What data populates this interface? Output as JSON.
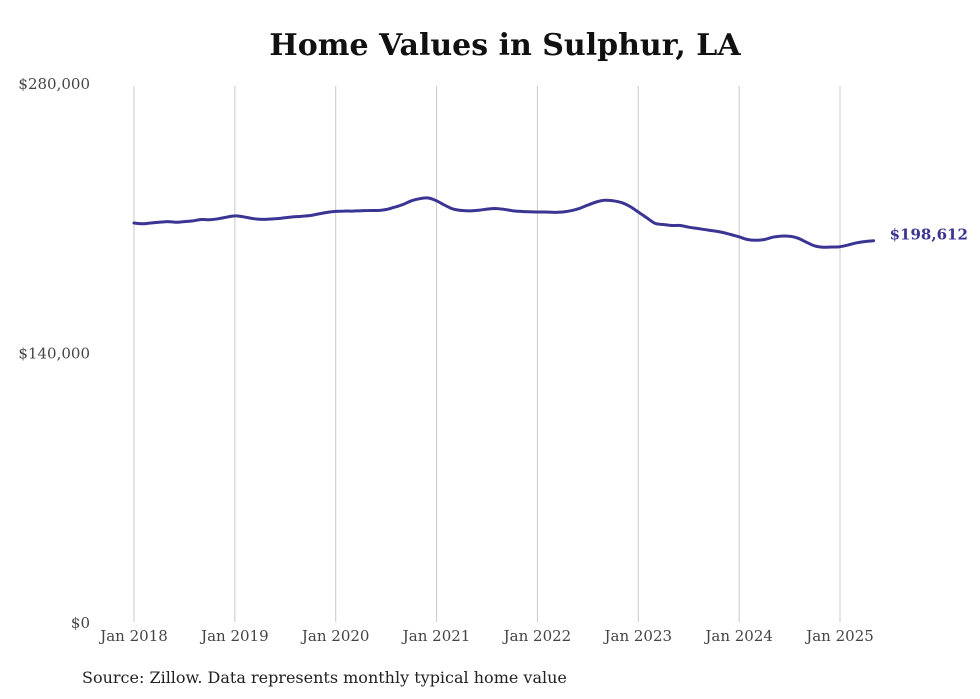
{
  "chart_data": {
    "type": "line",
    "title": "Home Values in Sulphur, LA",
    "xlabel": "",
    "ylabel": "",
    "ylim": [
      0,
      280000
    ],
    "xlim": [
      "2018-01",
      "2025-05"
    ],
    "y_ticks": [
      "$0",
      "$140,000",
      "$280,000"
    ],
    "y_tick_values": [
      0,
      140000,
      280000
    ],
    "x_ticks": [
      "Jan 2018",
      "Jan 2019",
      "Jan 2020",
      "Jan 2021",
      "Jan 2022",
      "Jan 2023",
      "Jan 2024",
      "Jan 2025"
    ],
    "x_tick_dates": [
      "2018-01",
      "2019-01",
      "2020-01",
      "2021-01",
      "2022-01",
      "2023-01",
      "2024-01",
      "2025-01"
    ],
    "grid": "vertical",
    "line_color": "#3a3593",
    "end_label": "$198,612",
    "series": [
      {
        "x": [
          "2018-01",
          "2018-02",
          "2018-03",
          "2018-04",
          "2018-05",
          "2018-06",
          "2018-07",
          "2018-08",
          "2018-09",
          "2018-10",
          "2018-11",
          "2018-12",
          "2019-01",
          "2019-02",
          "2019-03",
          "2019-04",
          "2019-05",
          "2019-06",
          "2019-07",
          "2019-08",
          "2019-09",
          "2019-10",
          "2019-11",
          "2019-12",
          "2020-01",
          "2020-02",
          "2020-03",
          "2020-04",
          "2020-05",
          "2020-06",
          "2020-07",
          "2020-08",
          "2020-09",
          "2020-10",
          "2020-11",
          "2020-12",
          "2021-01",
          "2021-02",
          "2021-03",
          "2021-04",
          "2021-05",
          "2021-06",
          "2021-07",
          "2021-08",
          "2021-09",
          "2021-10",
          "2021-11",
          "2021-12",
          "2022-01",
          "2022-02",
          "2022-03",
          "2022-04",
          "2022-05",
          "2022-06",
          "2022-07",
          "2022-08",
          "2022-09",
          "2022-10",
          "2022-11",
          "2022-12",
          "2023-01",
          "2023-02",
          "2023-03",
          "2023-04",
          "2023-05",
          "2023-06",
          "2023-07",
          "2023-08",
          "2023-09",
          "2023-10",
          "2023-11",
          "2023-12",
          "2024-01",
          "2024-02",
          "2024-03",
          "2024-04",
          "2024-05",
          "2024-06",
          "2024-07",
          "2024-08",
          "2024-09",
          "2024-10",
          "2024-11",
          "2024-12",
          "2025-01",
          "2025-02",
          "2025-03",
          "2025-04",
          "2025-05"
        ],
        "values": [
          207800,
          207400,
          207800,
          208200,
          208500,
          208200,
          208500,
          208900,
          209600,
          209500,
          210000,
          210800,
          211500,
          211000,
          210200,
          209700,
          209800,
          210100,
          210500,
          211000,
          211300,
          211700,
          212500,
          213300,
          213800,
          214000,
          214000,
          214200,
          214300,
          214300,
          214800,
          216000,
          217400,
          219300,
          220400,
          220800,
          219300,
          217000,
          215000,
          214300,
          214100,
          214400,
          215000,
          215300,
          214900,
          214200,
          213800,
          213600,
          213500,
          213500,
          213300,
          213500,
          214200,
          215400,
          217100,
          218700,
          219600,
          219300,
          218400,
          216400,
          213500,
          210500,
          207600,
          207000,
          206500,
          206500,
          205600,
          205000,
          204300,
          203700,
          202900,
          201800,
          200600,
          199200,
          198800,
          199200,
          200400,
          201000,
          200900,
          199900,
          197800,
          195900,
          195200,
          195300,
          195500,
          196400,
          197500,
          198200,
          198612
        ]
      }
    ]
  },
  "source": "Source: Zillow. Data represents monthly typical home value"
}
